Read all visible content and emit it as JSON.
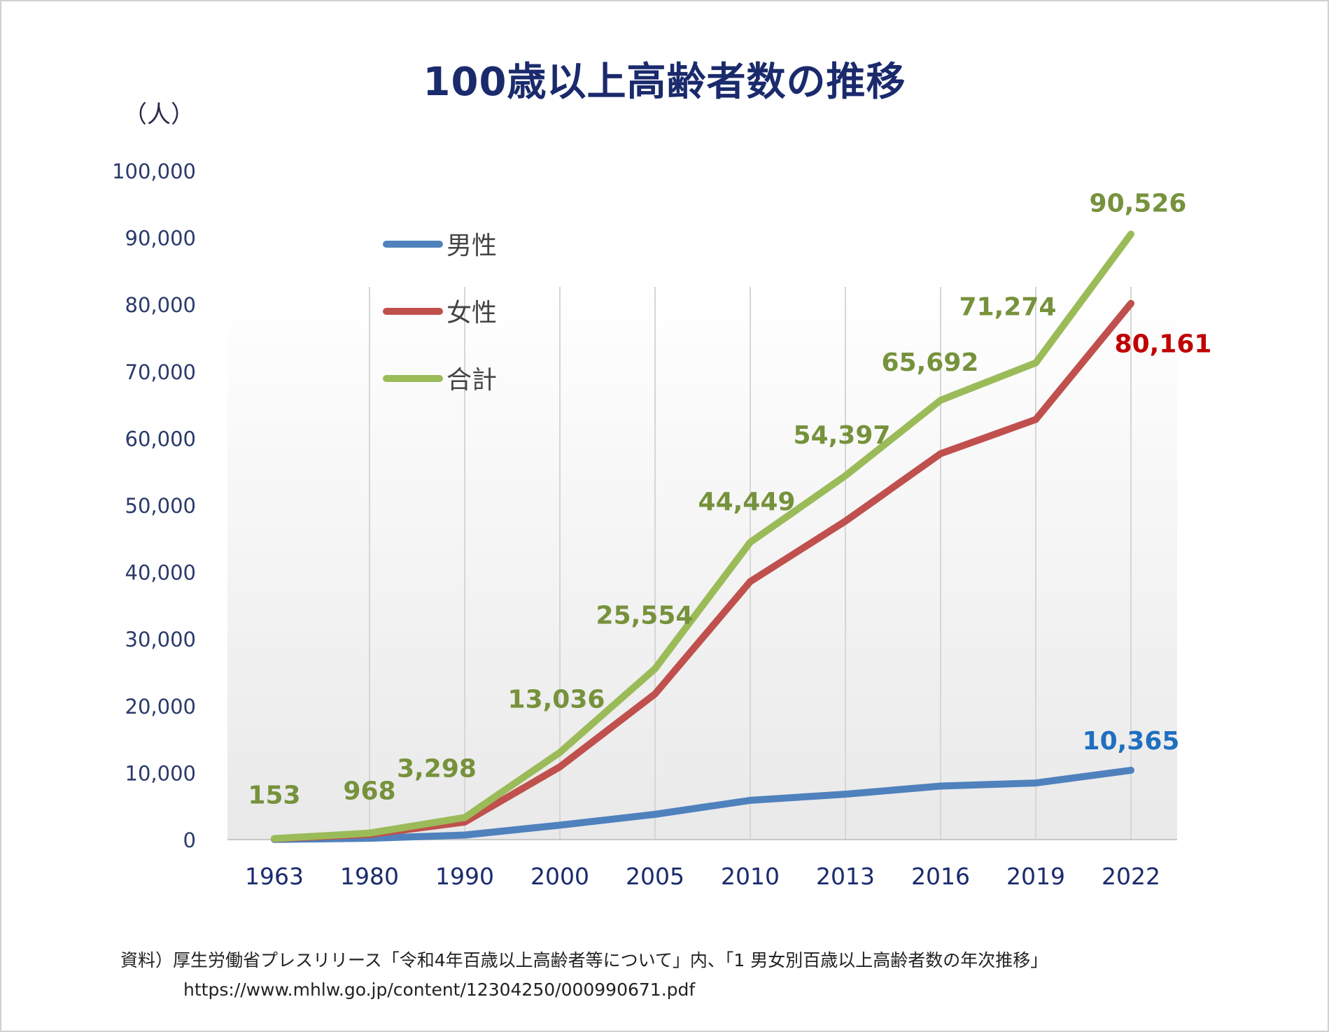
{
  "title": "100歳以上高齢者数の推移",
  "unit_label": "（人）",
  "source": {
    "line1": "資料）厚生労働省プレスリリース「令和4年百歳以上高齢者等について」内、「1 男女別百歳以上高齢者数の年次推移」",
    "line2": "https://www.mhlw.go.jp/content/12304250/000990671.pdf"
  },
  "chart_data": {
    "type": "line",
    "title": "100歳以上高齢者数の推移",
    "ylabel": "（人）",
    "xlabel": "",
    "categories": [
      "1963",
      "1980",
      "1990",
      "2000",
      "2005",
      "2010",
      "2013",
      "2016",
      "2019",
      "2022"
    ],
    "ylim": [
      0,
      100000
    ],
    "yticks": [
      0,
      10000,
      20000,
      30000,
      40000,
      50000,
      60000,
      70000,
      80000,
      90000,
      100000
    ],
    "ytick_labels": [
      "0",
      "10,000",
      "20,000",
      "30,000",
      "40,000",
      "50,000",
      "60,000",
      "70,000",
      "80,000",
      "90,000",
      "100,000"
    ],
    "grid": "vertical",
    "legend_position": "top-left",
    "series": [
      {
        "name": "男性",
        "color": "#4f81bd",
        "values": [
          20,
          197,
          680,
          2158,
          3779,
          5869,
          6791,
          7998,
          8463,
          10365
        ],
        "labels": [
          "",
          "",
          "",
          "",
          "",
          "",
          "",
          "",
          "",
          "10,365"
        ],
        "label_color": "#1f6fc0"
      },
      {
        "name": "女性",
        "color": "#c0504d",
        "values": [
          133,
          771,
          2618,
          10878,
          21775,
          38580,
          47606,
          57694,
          62811,
          80161
        ],
        "labels": [
          "",
          "",
          "",
          "",
          "",
          "",
          "",
          "",
          "",
          "80,161"
        ],
        "label_color": "#c00000"
      },
      {
        "name": "合計",
        "color": "#9bbb59",
        "values": [
          153,
          968,
          3298,
          13036,
          25554,
          44449,
          54397,
          65692,
          71274,
          90526
        ],
        "labels": [
          "153",
          "968",
          "3,298",
          "13,036",
          "25,554",
          "44,449",
          "54,397",
          "65,692",
          "71,274",
          "90,526"
        ],
        "label_color": "#76923c"
      }
    ]
  }
}
